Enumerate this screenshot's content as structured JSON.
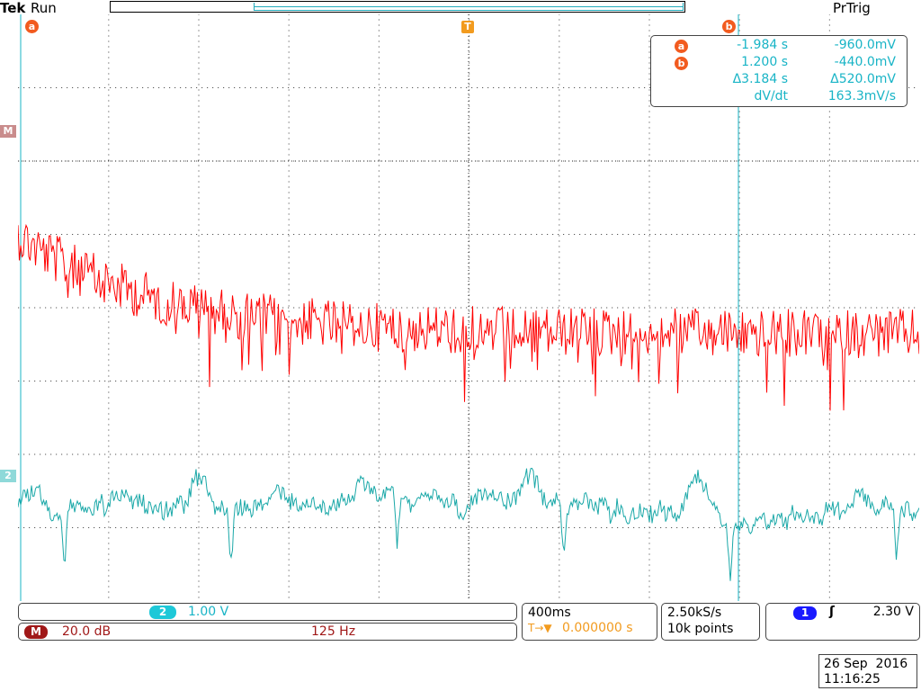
{
  "status": {
    "brand": "Tek",
    "run_state": "Run",
    "trigger_state": "PrTrig"
  },
  "markers": {
    "cursor_a": "a",
    "cursor_b": "b",
    "trigger": "T",
    "math_ref": "M",
    "ch2_ref": "2"
  },
  "cursor_readout": {
    "a": {
      "label": "a",
      "time": "-1.984 s",
      "value": "-960.0mV"
    },
    "b": {
      "label": "b",
      "time": "1.200 s",
      "value": "-440.0mV"
    },
    "delta": {
      "time": "Δ3.184 s",
      "value": "Δ520.0mV"
    },
    "rate": {
      "label": "dV/dt",
      "value": "163.3mV/s"
    }
  },
  "channel2": {
    "badge": "2",
    "scale": "1.00 V"
  },
  "math": {
    "badge": "M",
    "scale": "20.0 dB",
    "freq": "125 Hz"
  },
  "timebase": {
    "scale": "400ms",
    "trigger_pos_icon": "T→▼",
    "trigger_pos": "0.000000 s"
  },
  "acquisition": {
    "rate": "2.50kS/s",
    "points": "10k points"
  },
  "trigger": {
    "source": "1",
    "slope_icon": "rising-edge-icon",
    "slope_glyph": "ʃ",
    "level": "2.30 V"
  },
  "datetime": {
    "date": "26 Sep  2016",
    "time": "11:16:25"
  },
  "colors": {
    "math_trace": "#ff0000",
    "ch2_trace": "#1aa8a8",
    "cursor": "#18b4c6",
    "cursor_badge": "#f25b1f",
    "trigger_badge": "#f29b1f",
    "ch1_badge": "#1a1aff"
  }
}
